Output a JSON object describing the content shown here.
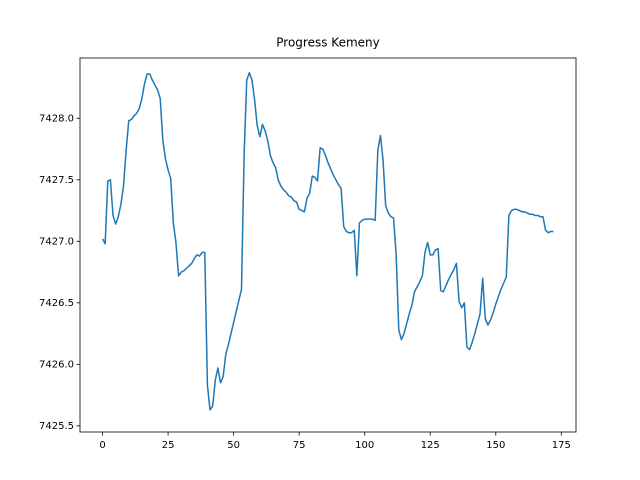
{
  "chart_data": {
    "type": "line",
    "title": "Progress Kemeny",
    "x": [
      0,
      1,
      2,
      3,
      4,
      5,
      6,
      7,
      8,
      9,
      10,
      11,
      12,
      13,
      14,
      15,
      16,
      17,
      18,
      19,
      20,
      21,
      22,
      23,
      24,
      25,
      26,
      27,
      28,
      29,
      30,
      31,
      32,
      33,
      34,
      35,
      36,
      37,
      38,
      39,
      40,
      41,
      42,
      43,
      44,
      45,
      46,
      47,
      48,
      49,
      50,
      51,
      52,
      53,
      54,
      55,
      56,
      57,
      58,
      59,
      60,
      61,
      62,
      63,
      64,
      65,
      66,
      67,
      68,
      69,
      70,
      71,
      72,
      73,
      74,
      75,
      76,
      77,
      78,
      79,
      80,
      81,
      82,
      83,
      84,
      85,
      86,
      87,
      88,
      89,
      90,
      91,
      92,
      93,
      94,
      95,
      96,
      97,
      98,
      99,
      100,
      101,
      102,
      103,
      104,
      105,
      106,
      107,
      108,
      109,
      110,
      111,
      112,
      113,
      114,
      115,
      116,
      117,
      118,
      119,
      120,
      121,
      122,
      123,
      124,
      125,
      126,
      127,
      128,
      129,
      130,
      131,
      132,
      133,
      134,
      135,
      136,
      137,
      138,
      139,
      140,
      141,
      142,
      143,
      144,
      145,
      146,
      147,
      148,
      149,
      150,
      151,
      152,
      153,
      154,
      155,
      156,
      157,
      158,
      159,
      160,
      161,
      162,
      163,
      164,
      165,
      166,
      167,
      168,
      169,
      170,
      171,
      172
    ],
    "series": [
      {
        "color": "#1f77b4",
        "values": [
          7427.02,
          7426.98,
          7427.49,
          7427.5,
          7427.21,
          7427.14,
          7427.2,
          7427.3,
          7427.45,
          7427.74,
          7427.98,
          7427.99,
          7428.02,
          7428.04,
          7428.08,
          7428.16,
          7428.28,
          7428.36,
          7428.36,
          7428.31,
          7428.27,
          7428.23,
          7428.16,
          7427.82,
          7427.67,
          7427.58,
          7427.51,
          7427.15,
          7426.99,
          7426.72,
          7426.75,
          7426.76,
          7426.78,
          7426.8,
          7426.82,
          7426.86,
          7426.89,
          7426.88,
          7426.91,
          7426.91,
          7425.83,
          7425.63,
          7425.66,
          7425.87,
          7425.97,
          7425.85,
          7425.9,
          7426.08,
          7426.16,
          7426.25,
          7426.34,
          7426.43,
          7426.52,
          7426.61,
          7427.7,
          7428.31,
          7428.37,
          7428.31,
          7428.15,
          7427.94,
          7427.85,
          7427.95,
          7427.9,
          7427.82,
          7427.7,
          7427.64,
          7427.6,
          7427.5,
          7427.45,
          7427.42,
          7427.4,
          7427.37,
          7427.36,
          7427.33,
          7427.32,
          7427.26,
          7427.25,
          7427.24,
          7427.35,
          7427.39,
          7427.53,
          7427.52,
          7427.49,
          7427.76,
          7427.75,
          7427.7,
          7427.64,
          7427.59,
          7427.54,
          7427.5,
          7427.46,
          7427.43,
          7427.12,
          7427.08,
          7427.07,
          7427.07,
          7427.09,
          7426.72,
          7427.15,
          7427.17,
          7427.18,
          7427.18,
          7427.18,
          7427.18,
          7427.17,
          7427.74,
          7427.86,
          7427.66,
          7427.29,
          7427.23,
          7427.2,
          7427.19,
          7426.89,
          7426.28,
          7426.2,
          7426.25,
          7426.33,
          7426.41,
          7426.48,
          7426.59,
          7426.63,
          7426.67,
          7426.72,
          7426.91,
          7426.99,
          7426.89,
          7426.89,
          7426.93,
          7426.94,
          7426.6,
          7426.59,
          7426.64,
          7426.69,
          7426.73,
          7426.77,
          7426.82,
          7426.51,
          7426.46,
          7426.5,
          7426.14,
          7426.12,
          7426.18,
          7426.25,
          7426.33,
          7426.41,
          7426.7,
          7426.37,
          7426.32,
          7426.36,
          7426.42,
          7426.49,
          7426.55,
          7426.61,
          7426.66,
          7426.71,
          7427.21,
          7427.25,
          7427.26,
          7427.26,
          7427.25,
          7427.24,
          7427.24,
          7427.23,
          7427.22,
          7427.22,
          7427.21,
          7427.21,
          7427.2,
          7427.2,
          7427.09,
          7427.07,
          7427.08,
          7427.08
        ]
      }
    ],
    "xlim": [
      -8.6,
      180.6
    ],
    "xticks": [
      0,
      25,
      50,
      75,
      100,
      125,
      150,
      175
    ],
    "ylim": [
      7425.45,
      7428.49
    ],
    "yticks": [
      {
        "value": 7425.5,
        "label": "7425.5"
      },
      {
        "value": 7426,
        "label": "7426.0"
      },
      {
        "value": 7426.5,
        "label": "7426.5"
      },
      {
        "value": 7427,
        "label": "7427.0"
      },
      {
        "value": 7427.5,
        "label": "7427.5"
      },
      {
        "value": 7428,
        "label": "7428.0"
      }
    ],
    "grid": false
  }
}
